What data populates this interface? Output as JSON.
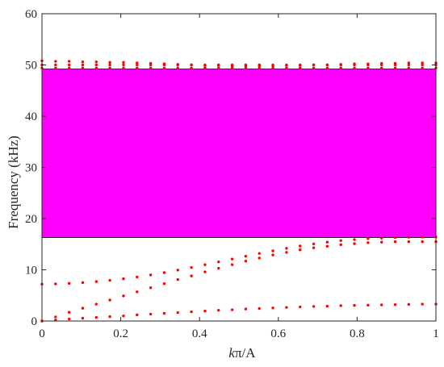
{
  "chart_data": {
    "type": "scatter",
    "xlabel_italic": "k",
    "xlabel_rest": "π/A",
    "ylabel": "Frequency (kHz)",
    "xlim": [
      0,
      1
    ],
    "ylim": [
      0,
      60
    ],
    "xticks": [
      0,
      0.2,
      0.4,
      0.6,
      0.8,
      1
    ],
    "xtick_labels": [
      "0",
      "0.2",
      "0.4",
      "0.6",
      "0.8",
      "1"
    ],
    "yticks": [
      0,
      10,
      20,
      30,
      40,
      50,
      60
    ],
    "ytick_labels": [
      "0",
      "10",
      "20",
      "30",
      "40",
      "50",
      "60"
    ],
    "grid": false,
    "point_color": "#ff0000",
    "bandgap": {
      "ymin": 16.3,
      "ymax": 49.2,
      "color": "#ff00ff"
    },
    "x": [
      0,
      0.0345,
      0.069,
      0.1034,
      0.1379,
      0.1724,
      0.2069,
      0.2414,
      0.2759,
      0.3103,
      0.3448,
      0.3793,
      0.4138,
      0.4483,
      0.4828,
      0.5172,
      0.5517,
      0.5862,
      0.6207,
      0.6552,
      0.6897,
      0.7241,
      0.7586,
      0.7931,
      0.8276,
      0.8621,
      0.8966,
      0.931,
      0.9655,
      1
    ],
    "series": [
      {
        "values": [
          0,
          0.2,
          0.4,
          0.55,
          0.7,
          0.85,
          1.0,
          1.2,
          1.35,
          1.5,
          1.65,
          1.8,
          1.95,
          2.1,
          2.2,
          2.35,
          2.45,
          2.55,
          2.65,
          2.75,
          2.85,
          2.9,
          3.0,
          3.05,
          3.1,
          3.15,
          3.2,
          3.25,
          3.3,
          3.3
        ]
      },
      {
        "values": [
          0,
          0.8,
          1.7,
          2.5,
          3.3,
          4.1,
          4.9,
          5.7,
          6.5,
          7.3,
          8.1,
          8.8,
          9.6,
          10.3,
          11.0,
          11.7,
          12.3,
          12.9,
          13.4,
          13.9,
          14.3,
          14.6,
          14.9,
          15.1,
          15.3,
          15.4,
          15.5,
          15.5,
          15.5,
          15.5
        ]
      },
      {
        "values": [
          7.2,
          7.25,
          7.35,
          7.5,
          7.7,
          7.95,
          8.25,
          8.6,
          9.0,
          9.45,
          9.95,
          10.45,
          11.0,
          11.55,
          12.1,
          12.65,
          13.2,
          13.7,
          14.2,
          14.65,
          15.05,
          15.4,
          15.7,
          15.9,
          16.1,
          16.2,
          16.3,
          16.35,
          16.4,
          16.4
        ]
      },
      {
        "values": [
          49.4,
          49.4,
          49.4,
          49.4,
          49.4,
          49.4,
          49.4,
          49.4,
          49.4,
          49.4,
          49.4,
          49.4,
          49.4,
          49.4,
          49.4,
          49.4,
          49.4,
          49.4,
          49.4,
          49.4,
          49.4,
          49.4,
          49.4,
          49.4,
          49.4,
          49.4,
          49.4,
          49.4,
          49.4,
          49.4
        ]
      },
      {
        "values": [
          50.8,
          50.7,
          50.7,
          50.6,
          50.6,
          50.5,
          50.5,
          50.4,
          50.3,
          50.2,
          50.1,
          50.0,
          49.9,
          49.9,
          49.8,
          49.8,
          49.8,
          49.8,
          49.9,
          49.9,
          50.0,
          50.0,
          50.1,
          50.2,
          50.2,
          50.3,
          50.3,
          50.4,
          50.4,
          50.4
        ]
      },
      {
        "values": [
          50.0,
          50.0,
          50.0,
          50.0,
          50.0,
          50.0,
          50.0,
          50.0,
          50.0,
          50.0,
          50.0,
          50.0,
          50.0,
          50.0,
          50.0,
          50.0,
          50.0,
          50.0,
          50.0,
          50.0,
          50.0,
          50.0,
          50.0,
          50.0,
          50.0,
          50.0,
          50.0,
          50.0,
          50.0,
          50.0
        ]
      }
    ]
  }
}
